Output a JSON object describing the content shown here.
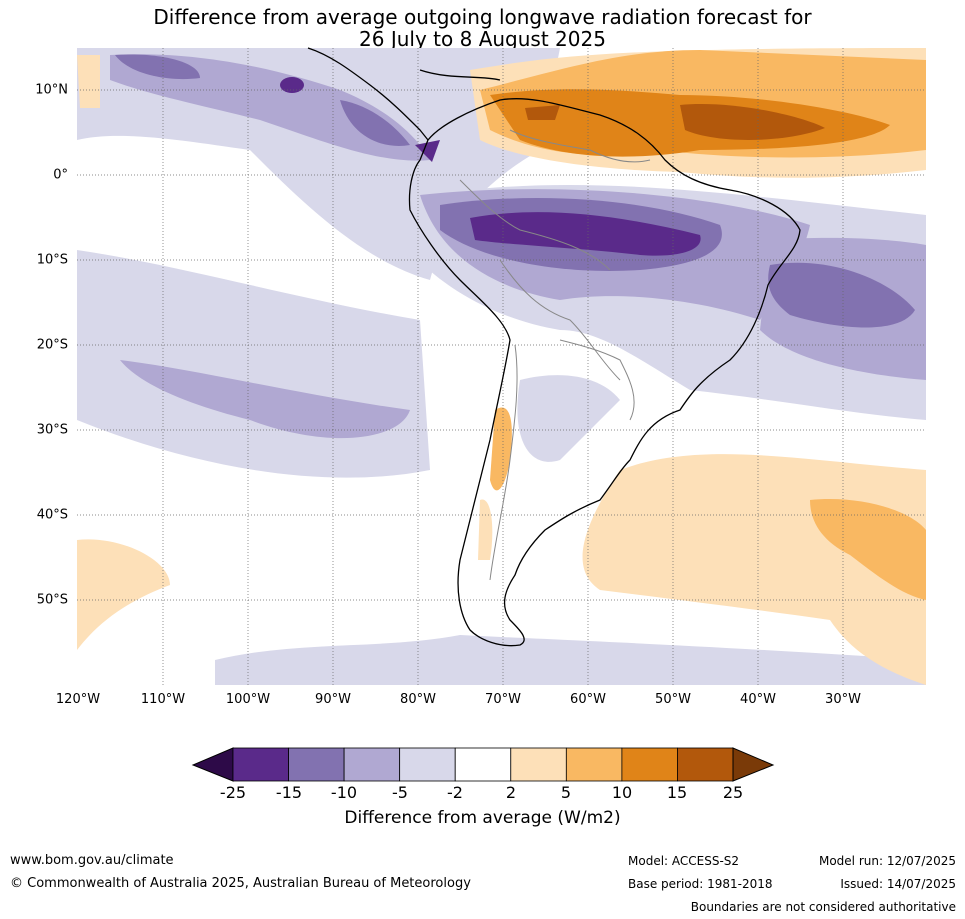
{
  "title": {
    "line1": "Difference from average outgoing longwave radiation forecast for",
    "line2": "26 July to 8 August 2025"
  },
  "map": {
    "lon_labels": [
      "120°W",
      "110°W",
      "100°W",
      "90°W",
      "80°W",
      "70°W",
      "60°W",
      "50°W",
      "40°W",
      "30°W"
    ],
    "lat_labels": [
      "10°N",
      "0°",
      "10°S",
      "20°S",
      "30°S",
      "40°S",
      "50°S"
    ]
  },
  "legend": {
    "ticks": [
      "-25",
      "-15",
      "-10",
      "-5",
      "-2",
      "2",
      "5",
      "10",
      "15",
      "25"
    ],
    "label": "Difference from average (W/m2)",
    "colors": [
      "#2d0a48",
      "#5a2a8a",
      "#8272b0",
      "#b0a8d2",
      "#d8d8ea",
      "#ffffff",
      "#fde0b8",
      "#f9b862",
      "#e08418",
      "#b2580c",
      "#7a3a08"
    ]
  },
  "footer": {
    "website": "www.bom.gov.au/climate",
    "copyright": "© Commonwealth of Australia 2025, Australian Bureau of Meteorology",
    "model": "Model: ACCESS-S2",
    "model_run": "Model run: 12/07/2025",
    "base_period": "Base period: 1981-2018",
    "issued": "Issued: 14/07/2025",
    "disclaimer": "Boundaries are not considered authoritative"
  }
}
